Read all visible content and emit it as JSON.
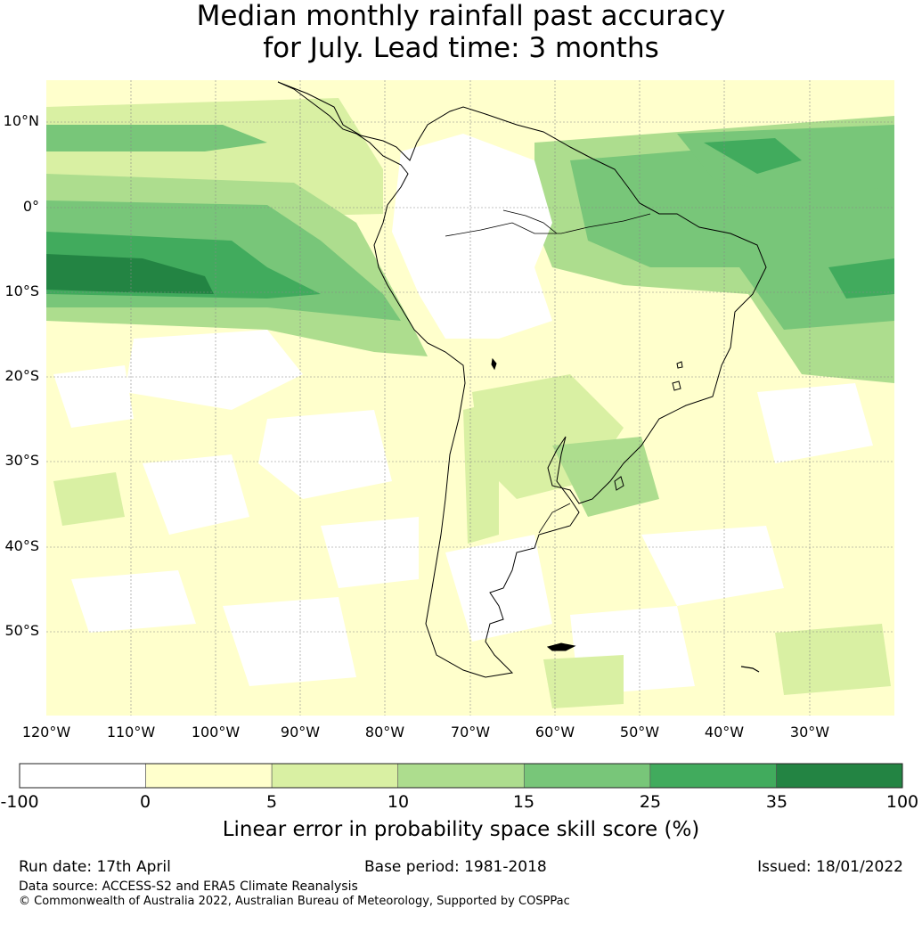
{
  "title": {
    "line1": "Median monthly rainfall past accuracy",
    "line2": "for July. Lead time: 3 months"
  },
  "map": {
    "region": "South America",
    "lat_labels": [
      "10°N",
      "0°",
      "10°S",
      "20°S",
      "30°S",
      "40°S",
      "50°S"
    ],
    "lon_labels": [
      "120°W",
      "110°W",
      "100°W",
      "90°W",
      "80°W",
      "70°W",
      "60°W",
      "50°W",
      "40°W",
      "30°W"
    ]
  },
  "colorbar": {
    "ticks": [
      "-100",
      "0",
      "5",
      "10",
      "15",
      "25",
      "35",
      "100"
    ],
    "colors": [
      "#ffffff",
      "#ffffcc",
      "#d9f0a3",
      "#addd8e",
      "#78c679",
      "#41ab5d",
      "#238443"
    ],
    "label": "Linear error in probability space skill score (%)"
  },
  "footer": {
    "run_date": "Run date: 17th April",
    "base_period": "Base period: 1981-2018",
    "issued": "Issued: 18/01/2022",
    "data_source": "Data source: ACCESS-S2 and ERA5 Climate Reanalysis",
    "copyright": "© Commonwealth of Australia 2022, Australian Bureau of Meteorology, Supported by COSPPac"
  }
}
